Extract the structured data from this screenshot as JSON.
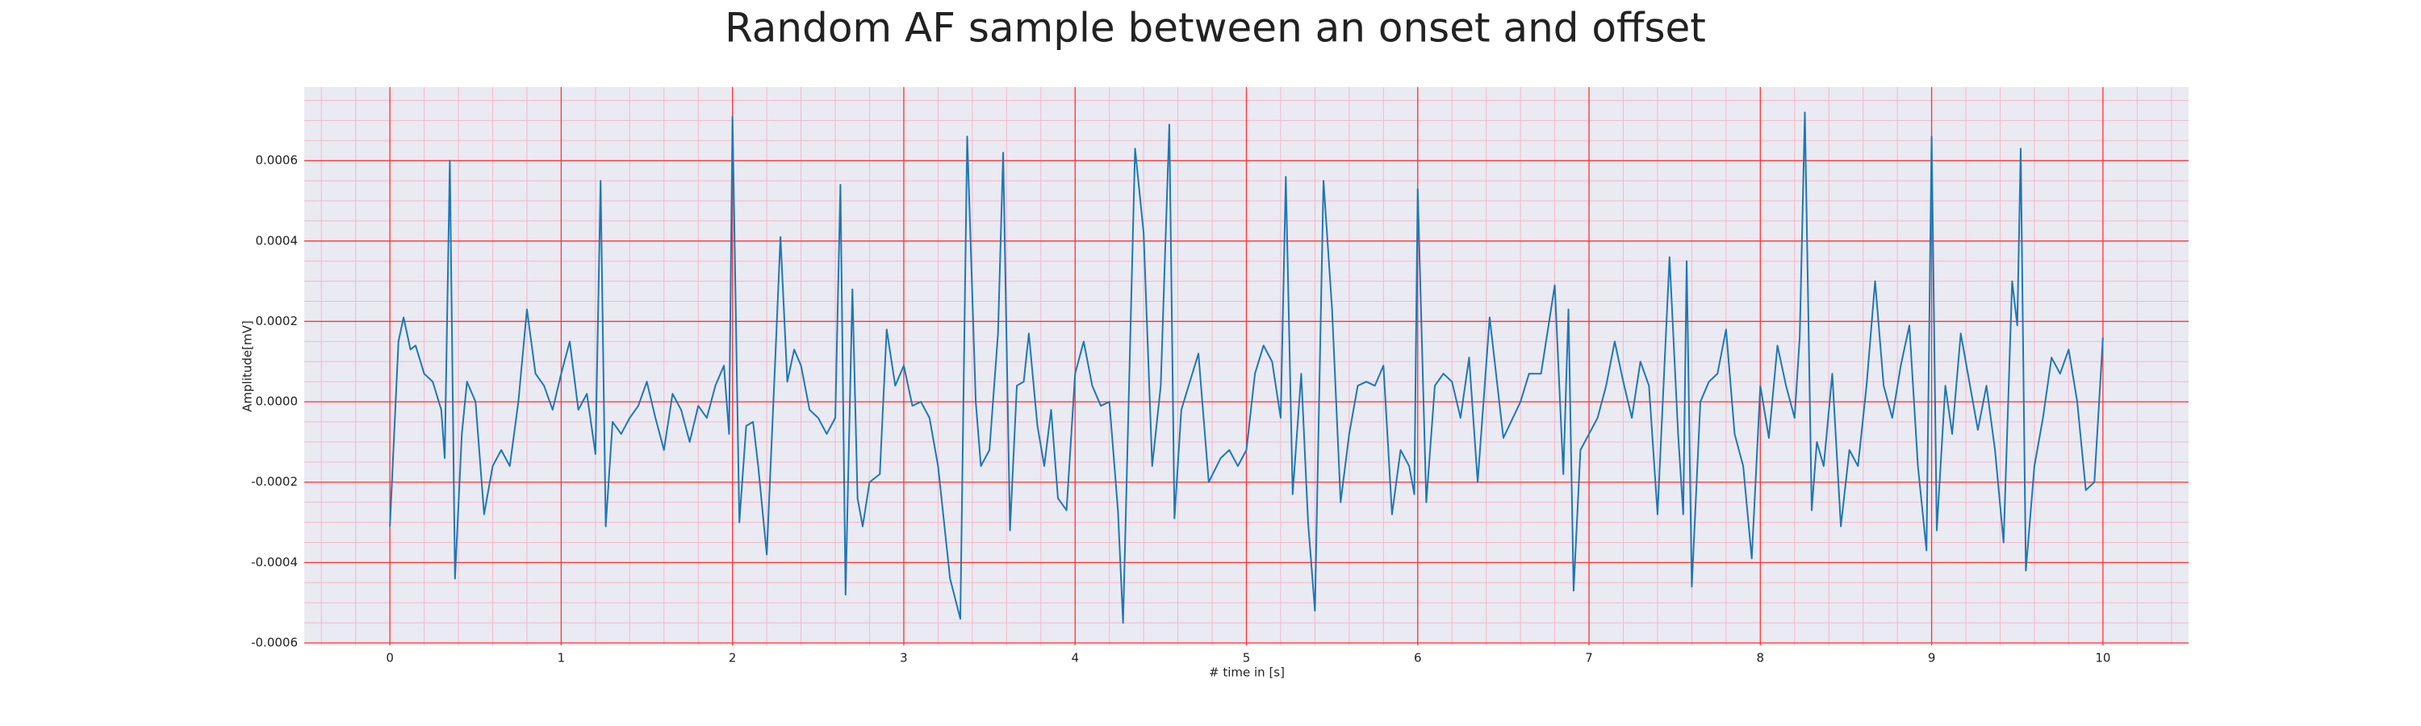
{
  "chart_data": {
    "type": "line",
    "title": "Random AF sample between an onset and offset",
    "x_label": "# time in [s]",
    "y_label": "Amplitude[mV]",
    "xlim": [
      -0.5,
      10.5
    ],
    "xticks": [
      0,
      1,
      2,
      3,
      4,
      5,
      6,
      7,
      8,
      9,
      10
    ],
    "ylim": [
      -0.000606,
      0.000783
    ],
    "yticks": [
      -0.0006,
      -0.0004,
      -0.0002,
      {
        "value": 0,
        "label": "0.0000"
      },
      0.0002,
      0.0004,
      0.0006
    ],
    "grid": true,
    "minor_grid": true,
    "grid_color": "#ff3333",
    "minor_grid_color": "#f4b8c8",
    "background": "#eaeaf2",
    "x": [
      0,
      0.05,
      0.08,
      0.12,
      0.15,
      0.2,
      0.25,
      0.3,
      0.32,
      0.35,
      0.38,
      0.42,
      0.45,
      0.5,
      0.55,
      0.6,
      0.65,
      0.7,
      0.75,
      0.8,
      0.85,
      0.9,
      0.95,
      1.0,
      1.05,
      1.1,
      1.15,
      1.2,
      1.23,
      1.26,
      1.3,
      1.35,
      1.4,
      1.45,
      1.5,
      1.55,
      1.6,
      1.65,
      1.7,
      1.75,
      1.8,
      1.85,
      1.9,
      1.95,
      1.98,
      2.0,
      2.04,
      2.08,
      2.12,
      2.15,
      2.2,
      2.25,
      2.28,
      2.32,
      2.36,
      2.4,
      2.45,
      2.5,
      2.55,
      2.6,
      2.63,
      2.66,
      2.7,
      2.73,
      2.76,
      2.8,
      2.86,
      2.9,
      2.95,
      3.0,
      3.05,
      3.1,
      3.15,
      3.2,
      3.27,
      3.33,
      3.37,
      3.42,
      3.45,
      3.5,
      3.55,
      3.58,
      3.62,
      3.66,
      3.7,
      3.73,
      3.78,
      3.82,
      3.86,
      3.9,
      3.95,
      4.0,
      4.05,
      4.1,
      4.15,
      4.2,
      4.25,
      4.28,
      4.35,
      4.4,
      4.45,
      4.5,
      4.55,
      4.58,
      4.62,
      4.67,
      4.72,
      4.78,
      4.85,
      4.9,
      4.95,
      5.0,
      5.05,
      5.1,
      5.15,
      5.2,
      5.23,
      5.27,
      5.32,
      5.36,
      5.4,
      5.45,
      5.5,
      5.55,
      5.6,
      5.65,
      5.7,
      5.75,
      5.8,
      5.85,
      5.9,
      5.95,
      5.98,
      6.0,
      6.05,
      6.1,
      6.15,
      6.2,
      6.25,
      6.3,
      6.35,
      6.42,
      6.5,
      6.6,
      6.65,
      6.72,
      6.8,
      6.85,
      6.88,
      6.91,
      6.95,
      7.0,
      7.05,
      7.1,
      7.15,
      7.2,
      7.25,
      7.3,
      7.35,
      7.4,
      7.47,
      7.52,
      7.55,
      7.57,
      7.6,
      7.65,
      7.7,
      7.75,
      7.8,
      7.85,
      7.9,
      7.95,
      8.0,
      8.05,
      8.1,
      8.15,
      8.2,
      8.23,
      8.26,
      8.3,
      8.33,
      8.37,
      8.42,
      8.47,
      8.52,
      8.57,
      8.62,
      8.67,
      8.72,
      8.77,
      8.82,
      8.87,
      8.92,
      8.97,
      9.0,
      9.03,
      9.08,
      9.12,
      9.17,
      9.22,
      9.27,
      9.32,
      9.37,
      9.42,
      9.47,
      9.5,
      9.52,
      9.55,
      9.6,
      9.65,
      9.7,
      9.75,
      9.8,
      9.85,
      9.9,
      9.95,
      10.0
    ],
    "series": [
      {
        "color": "#1f77b4",
        "values": [
          -0.00031,
          0.00015,
          0.00021,
          0.00013,
          0.00014,
          7e-05,
          5e-05,
          -2e-05,
          -0.00014,
          0.0006,
          -0.00044,
          -8e-05,
          5e-05,
          0,
          -0.00028,
          -0.00016,
          -0.00012,
          -0.00016,
          0,
          0.00023,
          7e-05,
          4e-05,
          -2e-05,
          7e-05,
          0.00015,
          -2e-05,
          2e-05,
          -0.00013,
          0.00055,
          -0.00031,
          -5e-05,
          -8e-05,
          -4e-05,
          -1e-05,
          5e-05,
          -4e-05,
          -0.00012,
          2e-05,
          -2e-05,
          -0.0001,
          -1e-05,
          -4e-05,
          4e-05,
          9e-05,
          -8e-05,
          0.00071,
          -0.0003,
          -6e-05,
          -5e-05,
          -0.00016,
          -0.00038,
          0.00011,
          0.00041,
          5e-05,
          0.00013,
          9e-05,
          -2e-05,
          -4e-05,
          -8e-05,
          -4e-05,
          0.00054,
          -0.00048,
          0.00028,
          -0.00024,
          -0.00031,
          -0.0002,
          -0.00018,
          0.00018,
          4e-05,
          9e-05,
          -1e-05,
          0,
          -4e-05,
          -0.00016,
          -0.00044,
          -0.00054,
          0.00066,
          0,
          -0.00016,
          -0.00012,
          0.00017,
          0.00062,
          -0.00032,
          4e-05,
          5e-05,
          0.00017,
          -6e-05,
          -0.00016,
          -2e-05,
          -0.00024,
          -0.00027,
          7e-05,
          0.00015,
          4e-05,
          -1e-05,
          0,
          -0.00027,
          -0.00055,
          0.00063,
          0.00042,
          -0.00016,
          4e-05,
          0.00069,
          -0.00029,
          -2e-05,
          5e-05,
          0.00012,
          -0.0002,
          -0.00014,
          -0.00012,
          -0.00016,
          -0.00012,
          7e-05,
          0.00014,
          0.0001,
          -4e-05,
          0.00056,
          -0.00023,
          7e-05,
          -0.0003,
          -0.00052,
          0.00055,
          0.00023,
          -0.00025,
          -8e-05,
          4e-05,
          5e-05,
          4e-05,
          9e-05,
          -0.00028,
          -0.00012,
          -0.00016,
          -0.00023,
          0.00053,
          -0.00025,
          4e-05,
          7e-05,
          5e-05,
          -4e-05,
          0.00011,
          -0.0002,
          0.00021,
          -9e-05,
          0,
          7e-05,
          7e-05,
          0.00029,
          -0.00018,
          0.00023,
          -0.00047,
          -0.00012,
          -8e-05,
          -4e-05,
          4e-05,
          0.00015,
          5e-05,
          -4e-05,
          0.0001,
          4e-05,
          -0.00028,
          0.00036,
          -8e-05,
          -0.00028,
          0.00035,
          -0.00046,
          0,
          5e-05,
          7e-05,
          0.00018,
          -8e-05,
          -0.00016,
          -0.00039,
          4e-05,
          -9e-05,
          0.00014,
          4e-05,
          -4e-05,
          0.00016,
          0.00072,
          -0.00027,
          -0.0001,
          -0.00016,
          7e-05,
          -0.00031,
          -0.00012,
          -0.00016,
          4e-05,
          0.0003,
          4e-05,
          -4e-05,
          9e-05,
          0.00019,
          -0.00016,
          -0.00037,
          0.00066,
          -0.00032,
          4e-05,
          -8e-05,
          0.00017,
          5e-05,
          -7e-05,
          4e-05,
          -0.00012,
          -0.00035,
          0.0003,
          0.00019,
          0.00063,
          -0.00042,
          -0.00016,
          -4e-05,
          0.00011,
          7e-05,
          0.00013,
          0,
          -0.00022,
          -0.0002,
          0.00016
        ]
      }
    ]
  }
}
